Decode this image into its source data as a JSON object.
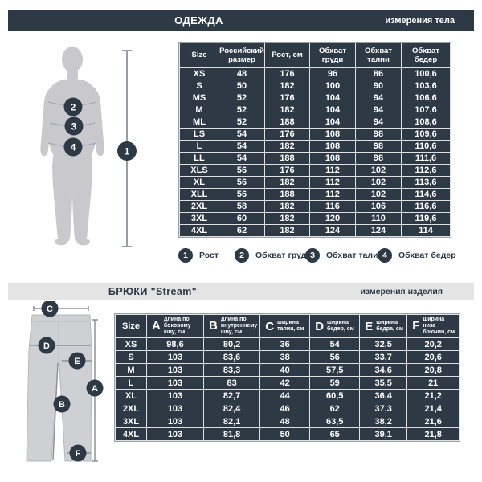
{
  "colors": {
    "dark_navy": "#2d3a46",
    "light_bar": "#e4e4e5",
    "silhouette_gray": "#c9c9cd",
    "trousers_gray": "#cfd0d4",
    "measure_line_gray": "#8d939b",
    "table_grid_gray": "#9ba0a6",
    "text_white": "#ffffff"
  },
  "section_clothing": {
    "title": "ОДЕЖДА",
    "subtitle": "измерения тела",
    "figure_markers": [
      "1",
      "2",
      "3",
      "4"
    ],
    "table": {
      "headers": [
        "Size",
        "Российский размер",
        "Рост, см",
        "Обхват груди",
        "Обхват талии",
        "Обхват бедер"
      ],
      "rows": [
        [
          "XS",
          "48",
          "176",
          "96",
          "86",
          "100,6"
        ],
        [
          "S",
          "50",
          "182",
          "100",
          "90",
          "103,6"
        ],
        [
          "MS",
          "52",
          "176",
          "104",
          "94",
          "106,6"
        ],
        [
          "M",
          "52",
          "182",
          "104",
          "94",
          "107,6"
        ],
        [
          "ML",
          "52",
          "188",
          "104",
          "94",
          "108,6"
        ],
        [
          "LS",
          "54",
          "176",
          "108",
          "98",
          "109,6"
        ],
        [
          "L",
          "54",
          "182",
          "108",
          "98",
          "110,6"
        ],
        [
          "LL",
          "54",
          "188",
          "108",
          "98",
          "111,6"
        ],
        [
          "XLS",
          "56",
          "176",
          "112",
          "102",
          "112,6"
        ],
        [
          "XL",
          "56",
          "182",
          "112",
          "102",
          "113,6"
        ],
        [
          "XLL",
          "56",
          "188",
          "112",
          "102",
          "114,6"
        ],
        [
          "2XL",
          "58",
          "182",
          "116",
          "106",
          "116,6"
        ],
        [
          "3XL",
          "60",
          "182",
          "120",
          "110",
          "119,6"
        ],
        [
          "4XL",
          "62",
          "182",
          "124",
          "124",
          "114"
        ]
      ]
    },
    "legend": [
      {
        "num": "1",
        "label": "Рост"
      },
      {
        "num": "2",
        "label": "Обхват груди"
      },
      {
        "num": "3",
        "label": "Обхват талии"
      },
      {
        "num": "4",
        "label": "Обхват бедер"
      }
    ]
  },
  "section_trousers": {
    "title": "БРЮКИ \"Stream\"",
    "subtitle": "измерения изделия",
    "figure_markers": [
      "A",
      "B",
      "C",
      "D",
      "E",
      "F"
    ],
    "table": {
      "headers": [
        {
          "letter": "",
          "label": "Size"
        },
        {
          "letter": "A",
          "label": "длина по боковому шву, см"
        },
        {
          "letter": "B",
          "label": "длина по внутреннему шву, см"
        },
        {
          "letter": "C",
          "label": "ширина талии, см"
        },
        {
          "letter": "D",
          "label": "ширина бедер, см"
        },
        {
          "letter": "E",
          "label": "ширина бедра, см"
        },
        {
          "letter": "F",
          "label": "ширина низа брючин, см"
        }
      ],
      "rows": [
        [
          "XS",
          "98,6",
          "80,2",
          "36",
          "54",
          "32,5",
          "20,2"
        ],
        [
          "S",
          "103",
          "83,6",
          "38",
          "56",
          "33,7",
          "20,6"
        ],
        [
          "M",
          "103",
          "83,3",
          "40",
          "57,5",
          "34,6",
          "20,8"
        ],
        [
          "L",
          "103",
          "83",
          "42",
          "59",
          "35,5",
          "21"
        ],
        [
          "XL",
          "103",
          "82,7",
          "44",
          "60,5",
          "36,4",
          "21,2"
        ],
        [
          "2XL",
          "103",
          "82,4",
          "46",
          "62",
          "37,3",
          "21,4"
        ],
        [
          "3XL",
          "103",
          "82,1",
          "48",
          "63,5",
          "38,2",
          "21,6"
        ],
        [
          "4XL",
          "103",
          "81,8",
          "50",
          "65",
          "39,1",
          "21,8"
        ]
      ]
    }
  }
}
